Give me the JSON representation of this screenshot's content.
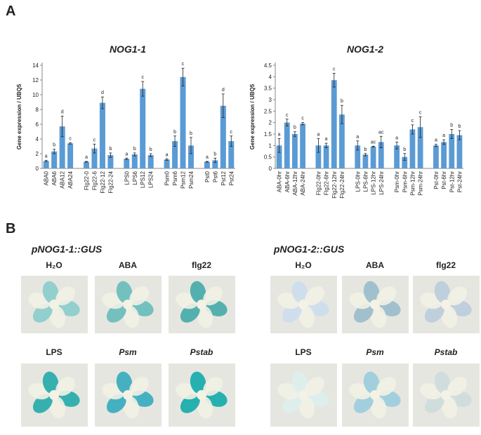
{
  "panel_labels": [
    "A",
    "B"
  ],
  "chart_data": [
    {
      "type": "bar",
      "title": "NOG1-1",
      "y_label": "Gene expression / UBQ5",
      "color": "#5b9bd5",
      "categories": [
        "ABA0",
        "ABA6",
        "ABA12",
        "ABA24",
        null,
        "Flg22-0",
        "Flg22-6",
        "Flg22-12",
        "Flg22-24",
        null,
        "LPS0",
        "LPS6",
        "LPS12",
        "LPS24",
        null,
        "Psm0",
        "Psm6",
        "Psm12",
        "Psm24",
        null,
        "Pst0",
        "Pst6",
        "Pst12",
        "Pst24"
      ],
      "values": [
        1.0,
        2.3,
        5.7,
        3.4,
        null,
        0.9,
        2.7,
        8.9,
        1.8,
        null,
        1.3,
        1.9,
        10.8,
        1.8,
        null,
        1.2,
        3.7,
        12.4,
        3.1,
        null,
        0.9,
        1.1,
        8.5,
        3.7
      ],
      "errors": [
        0.1,
        0.3,
        1.4,
        0.1,
        null,
        0.05,
        0.6,
        0.8,
        0.3,
        null,
        0.1,
        0.2,
        1.0,
        0.2,
        null,
        0.1,
        0.7,
        1.2,
        1.1,
        null,
        0.05,
        0.3,
        1.6,
        0.7
      ],
      "letters": [
        "a",
        "b",
        "d",
        "c",
        null,
        "a",
        "c",
        "d",
        "b",
        null,
        "a",
        "b",
        "c",
        "b",
        null,
        "a",
        "b",
        "c",
        "b",
        null,
        "a",
        "b",
        "d",
        "c"
      ],
      "ylim": [
        0,
        14
      ],
      "yticks": [
        0,
        2,
        4,
        6,
        8,
        10,
        12,
        14
      ]
    },
    {
      "type": "bar",
      "title": "NOG1-2",
      "y_label": "Gene expression / UBQ5",
      "color": "#5b9bd5",
      "categories": [
        "ABA-0hr",
        "ABA-6hr",
        "ABA-12hr",
        "ABA-24hr",
        null,
        "Flg22-0hr",
        "Flg22-6hr",
        "Flg22-12hr",
        "Flg22-24hr",
        null,
        "LPS-0hr",
        "LPS-6hr",
        "LPS-12hr",
        "LPS-24hr",
        null,
        "Psm-0hr",
        "Psm-6hr",
        "Psm-12hr",
        "Psm-24hr",
        null,
        "Pst-0hr",
        "Pst-6hr",
        "Pst-12hr",
        "Pst-24hr"
      ],
      "values": [
        1.0,
        2.0,
        1.5,
        1.95,
        null,
        1.0,
        1.0,
        3.85,
        2.35,
        null,
        1.0,
        0.6,
        0.95,
        1.15,
        null,
        1.0,
        0.5,
        1.7,
        1.8,
        null,
        1.0,
        1.15,
        1.5,
        1.45
      ],
      "errors": [
        0.3,
        0.15,
        0.1,
        0.05,
        null,
        0.3,
        0.1,
        0.3,
        0.4,
        null,
        0.2,
        0.05,
        0.02,
        0.25,
        null,
        0.15,
        0.15,
        0.2,
        0.45,
        null,
        0.05,
        0.1,
        0.2,
        0.2
      ],
      "letters": [
        "a",
        "c",
        "b",
        "c",
        null,
        "a",
        "a",
        "c",
        "b",
        null,
        "a",
        "b",
        "ac",
        "ac",
        null,
        "a",
        "b",
        "c",
        "c",
        null,
        "a",
        "a",
        "b",
        "b"
      ],
      "ylim": [
        0,
        4.5
      ],
      "yticks": [
        0,
        0.5,
        1,
        1.5,
        2,
        2.5,
        3,
        3.5,
        4,
        4.5
      ]
    }
  ],
  "gus": [
    {
      "title": "pNOG1-1::GUS",
      "labels": [
        "H₂O",
        "ABA",
        "flg22",
        "LPS",
        "Psm",
        "Pstab"
      ]
    },
    {
      "title": "pNOG1-2::GUS",
      "labels": [
        "H₂O",
        "ABA",
        "flg22",
        "LPS",
        "Psm",
        "Pstab"
      ]
    }
  ]
}
